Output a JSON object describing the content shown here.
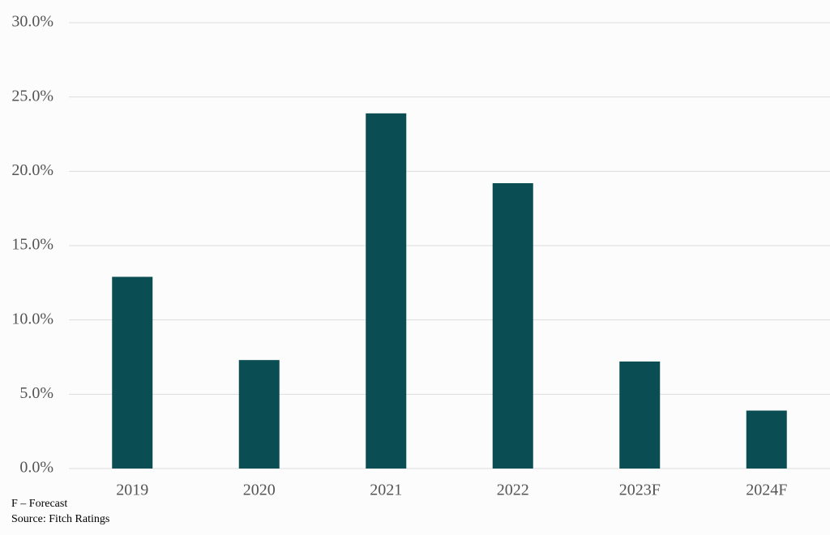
{
  "chart_data": {
    "type": "bar",
    "categories": [
      "2019",
      "2020",
      "2021",
      "2022",
      "2023F",
      "2024F"
    ],
    "values": [
      12.9,
      7.3,
      23.9,
      19.2,
      7.2,
      3.9
    ],
    "color": "#0a4e54",
    "ylim": [
      0,
      30
    ],
    "yticks": [
      {
        "value": 0,
        "label": "0.0%"
      },
      {
        "value": 5,
        "label": "5.0%"
      },
      {
        "value": 10,
        "label": "10.0%"
      },
      {
        "value": 15,
        "label": "15.0%"
      },
      {
        "value": 20,
        "label": "20.0%"
      },
      {
        "value": 25,
        "label": "25.0%"
      },
      {
        "value": 30,
        "label": "30.0%"
      }
    ],
    "grid": true,
    "note": "F – Forecast",
    "source": "Source: Fitch Ratings"
  }
}
